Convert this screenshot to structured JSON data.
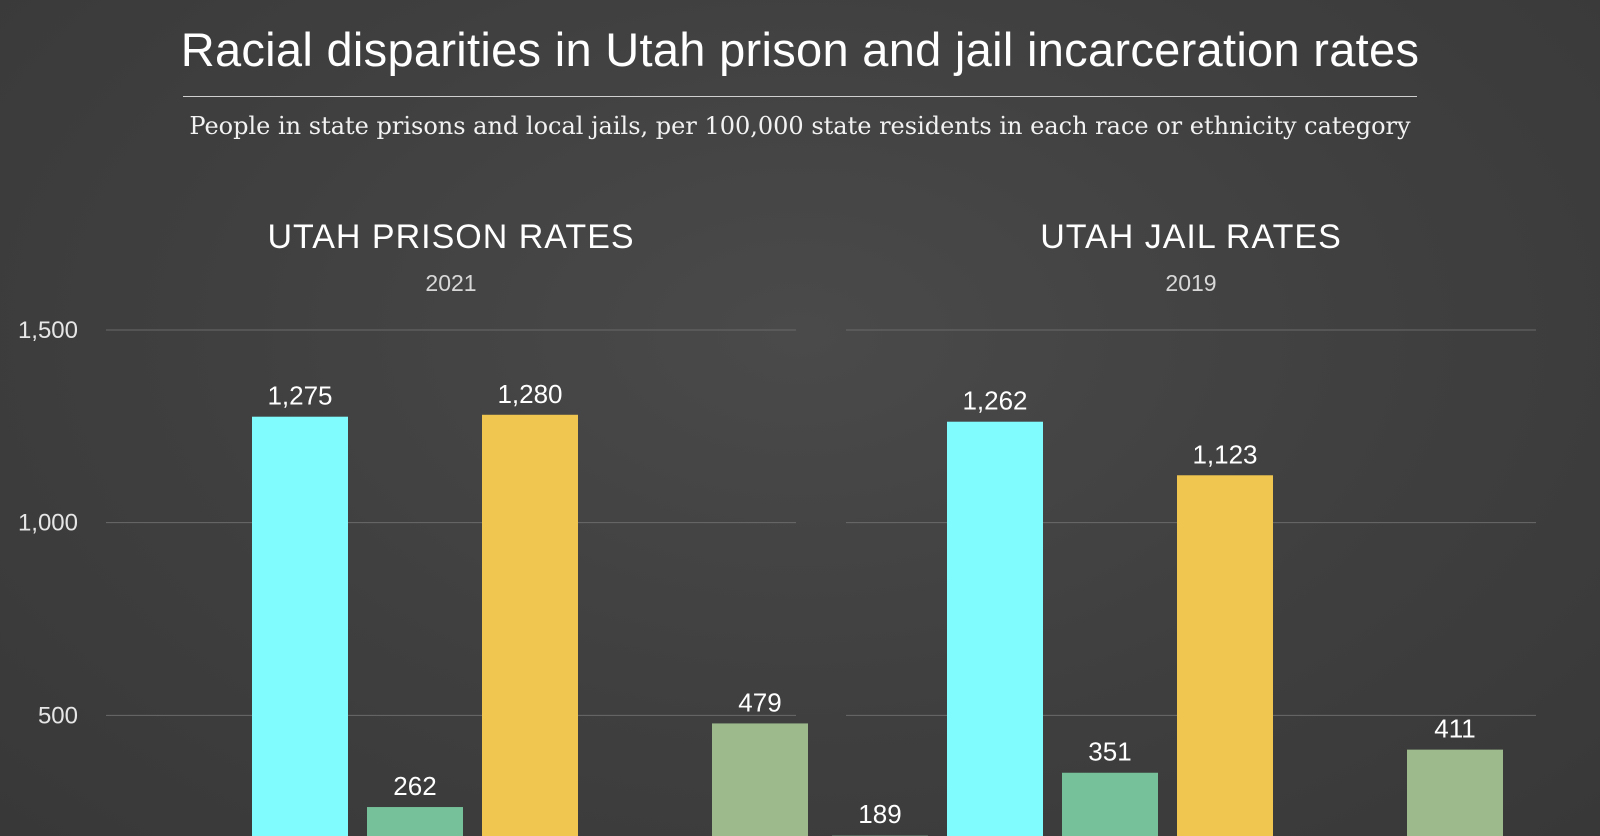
{
  "title": "Racial disparities in Utah prison and jail incarceration rates",
  "subtitle": "People in state prisons and local jails, per 100,000 state residents in each race or ethnicity category",
  "colors": {
    "background": "#404040",
    "gridline": "#6a6a6a",
    "bars": [
      "#5d6f63",
      "#80fcfe",
      "#76c199",
      "#f0c550",
      "#8a8a8a",
      "#9dba8c"
    ]
  },
  "chart_data": [
    {
      "type": "bar",
      "title": "UTAH PRISON RATES",
      "subtitle": "2021",
      "ylim": [
        0,
        1500
      ],
      "yticks": [
        500,
        1000,
        1500
      ],
      "ytick_labels": [
        "500",
        "1,000",
        "1,500"
      ],
      "grid": true,
      "bars": [
        {
          "value": 1275,
          "label": "1,275",
          "color": "#80fcfe"
        },
        {
          "value": 262,
          "label": "262",
          "color": "#76c199"
        },
        {
          "value": 1280,
          "label": "1,280",
          "color": "#f0c550"
        },
        {
          "value": 479,
          "label": "479",
          "color": "#9dba8c"
        }
      ]
    },
    {
      "type": "bar",
      "title": "UTAH JAIL RATES",
      "subtitle": "2019",
      "ylim": [
        0,
        1500
      ],
      "yticks": [
        500,
        1000,
        1500
      ],
      "ytick_labels": [
        "",
        "",
        ""
      ],
      "grid": true,
      "bars": [
        {
          "value": 189,
          "label": "189",
          "color": "#5d6f63"
        },
        {
          "value": 1262,
          "label": "1,262",
          "color": "#80fcfe"
        },
        {
          "value": 351,
          "label": "351",
          "color": "#76c199"
        },
        {
          "value": 1123,
          "label": "1,123",
          "color": "#f0c550"
        },
        {
          "value": 411,
          "label": "411",
          "color": "#9dba8c"
        }
      ]
    }
  ]
}
